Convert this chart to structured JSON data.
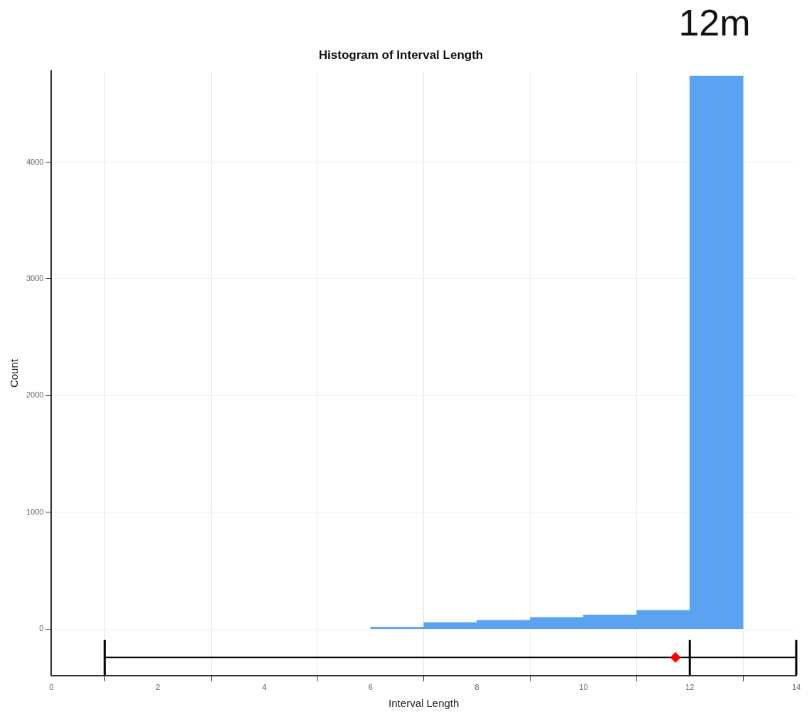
{
  "chart_data": {
    "type": "histogram",
    "title": "Histogram of Interval Length",
    "xlabel": "Interval Length",
    "ylabel": "Count",
    "bins": [
      6,
      7,
      8,
      9,
      10,
      11,
      12,
      13
    ],
    "values": [
      15,
      55,
      75,
      98,
      120,
      160,
      4740
    ],
    "color": "#5ba3f0",
    "series": [
      {
        "type": "line",
        "x": [
          1,
          12,
          14
        ],
        "values": [
          -245,
          -245,
          -245
        ],
        "errors": [
          150,
          150,
          150
        ],
        "color": "#000000",
        "marker": "none"
      },
      {
        "type": "scatter",
        "x": [
          11.73
        ],
        "values": [
          -245
        ],
        "color": "#ff0000",
        "marker": "diamond"
      }
    ],
    "xlim": [
      0,
      14
    ],
    "xticks": [
      0,
      2,
      4,
      6,
      8,
      10,
      12,
      14
    ],
    "ylim": [
      -400,
      4780
    ],
    "yticks": [
      0,
      1000,
      2000,
      3000,
      4000
    ],
    "grid": true,
    "annotations": [
      "12m"
    ]
  }
}
